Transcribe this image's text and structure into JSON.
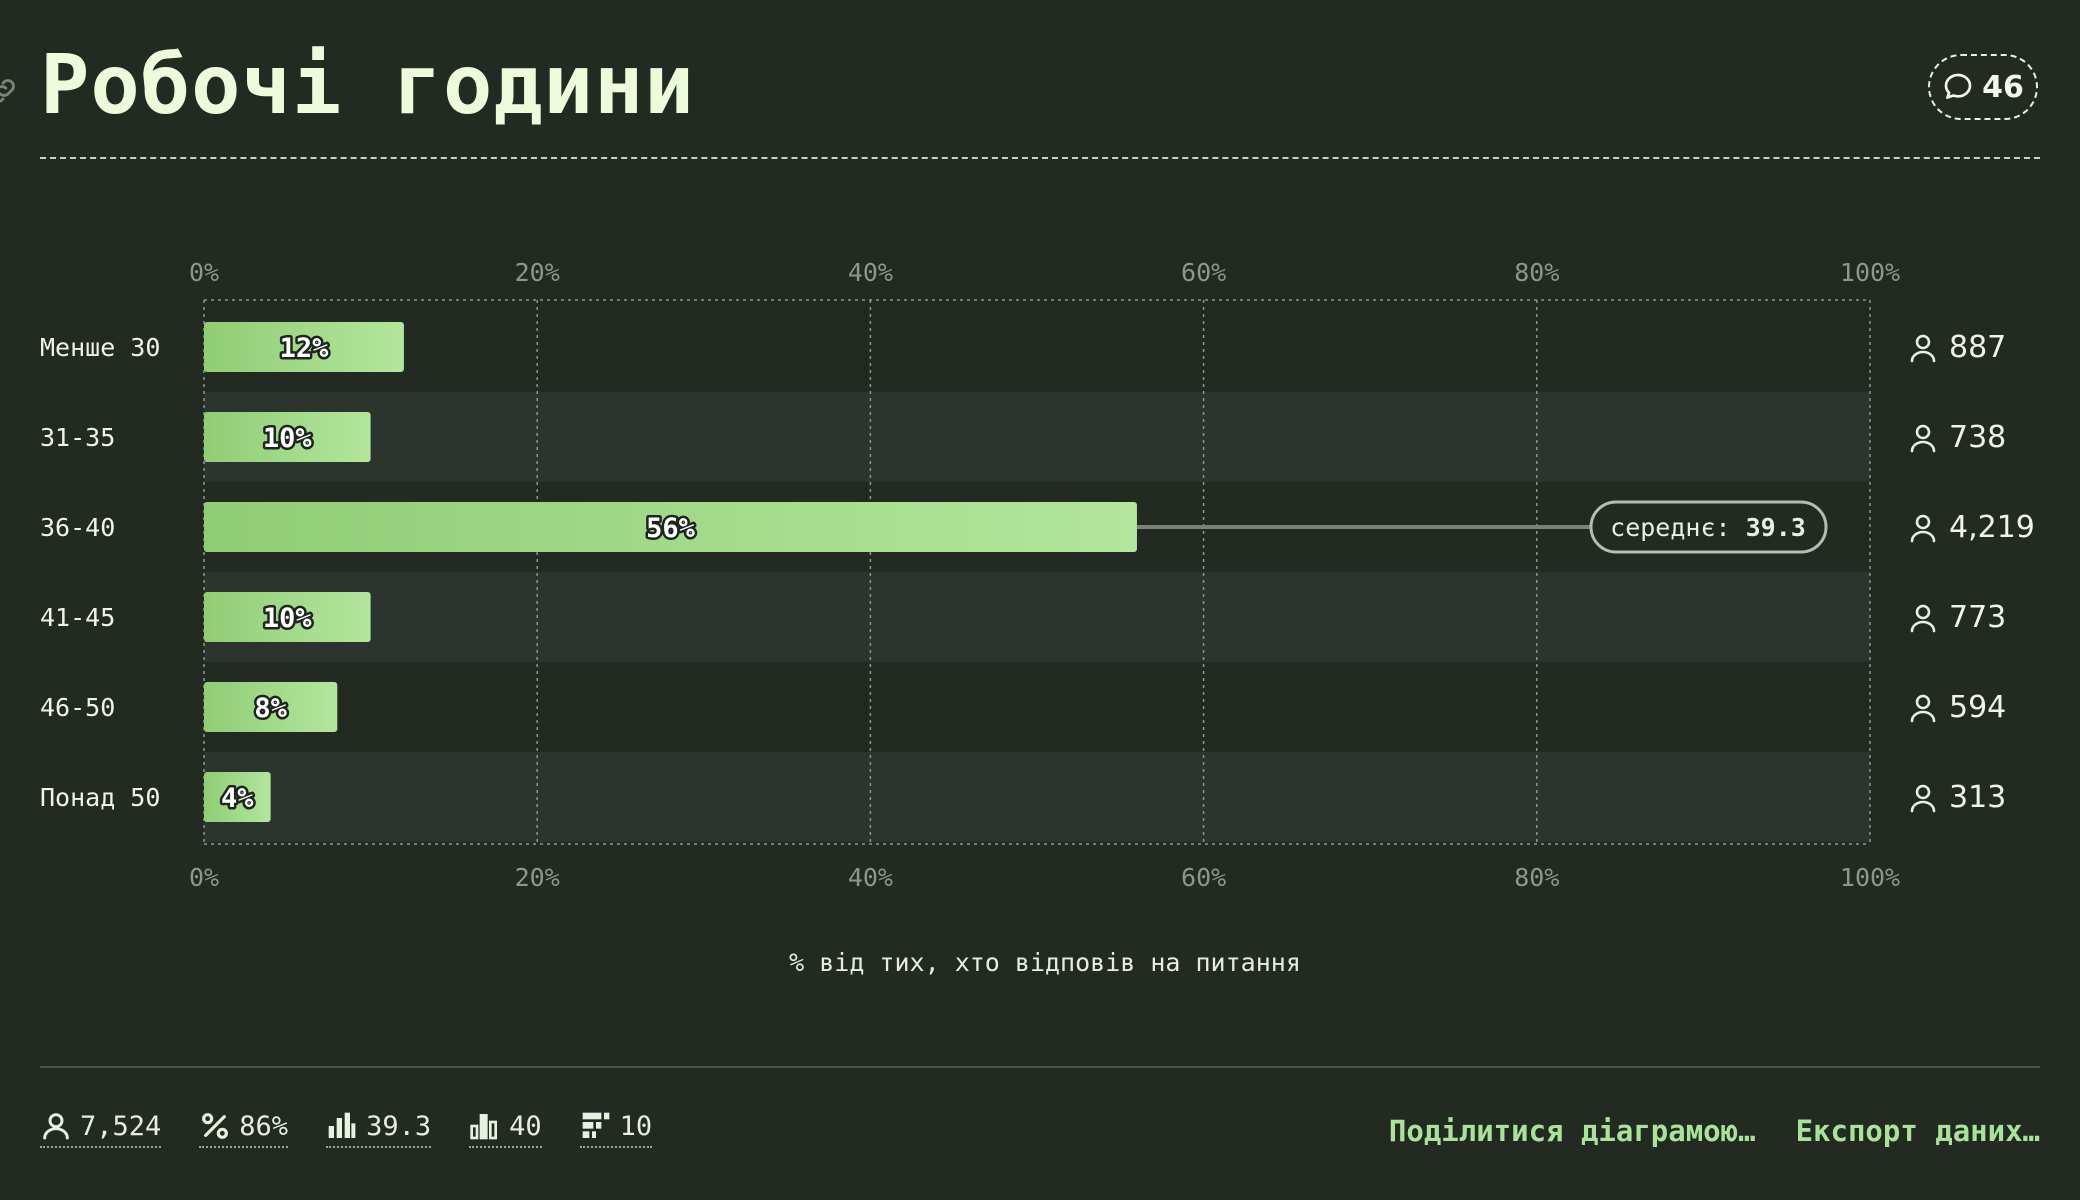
{
  "title": "Робочі години",
  "comments_count": "46",
  "chart_data": {
    "type": "bar",
    "orientation": "horizontal",
    "categories": [
      "Менше 30",
      "31-35",
      "36-40",
      "41-45",
      "46-50",
      "Понад 50"
    ],
    "values": [
      12,
      10,
      56,
      10,
      8,
      4
    ],
    "value_labels": [
      "12%",
      "10%",
      "56%",
      "10%",
      "8%",
      "4%"
    ],
    "respondents": [
      "887",
      "738",
      "4,219",
      "773",
      "594",
      "313"
    ],
    "x_ticks": [
      "0%",
      "20%",
      "40%",
      "60%",
      "80%",
      "100%"
    ],
    "xlim": [
      0,
      100
    ],
    "xlabel": "% від тих, хто відповів на питання",
    "mean_label": "середнє:",
    "mean_value": "39.3",
    "mean_category": "36-40",
    "grid": true,
    "colors": {
      "bar_start": "#8fcd75",
      "bar_end": "#b3e69c",
      "background": "#232a22",
      "stripe": "#2b352e"
    }
  },
  "stats": {
    "respondents": "7,524",
    "percent_answered": "86%",
    "mean": "39.3",
    "median": "40",
    "options": "10"
  },
  "actions": {
    "share": "Поділитися діаграмою…",
    "export": "Експорт даних…"
  }
}
